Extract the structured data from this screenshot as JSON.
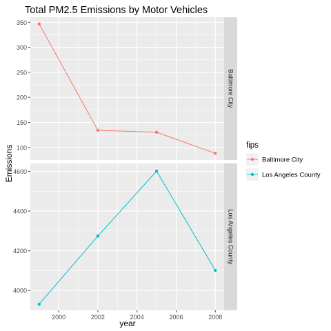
{
  "chart_data": {
    "type": "line",
    "title": "Total PM2.5 Emissions by Motor Vehicles",
    "xlabel": "year",
    "ylabel": "Emissions",
    "x": [
      1999,
      2002,
      2005,
      2008
    ],
    "xlim": [
      1998.55,
      2008.45
    ],
    "x_ticks": [
      2000,
      2002,
      2004,
      2006,
      2008
    ],
    "x_tick_labels": [
      "2000",
      "2002",
      "2004",
      "2006",
      "2008"
    ],
    "grid": true,
    "legend": {
      "title": "fips",
      "placement": "right"
    },
    "facets": [
      {
        "strip_label": "Baltimore City",
        "series": [
          {
            "name": "Baltimore City",
            "color": "#F8766D",
            "values": [
              346.8,
              134.3,
              130.4,
              88.3
            ]
          }
        ],
        "ylim": [
          75,
          360
        ],
        "y_ticks": [
          100,
          150,
          200,
          250,
          300,
          350
        ],
        "y_tick_labels": [
          "100",
          "150",
          "200",
          "250",
          "300",
          "350"
        ]
      },
      {
        "strip_label": "Los Angeles County",
        "series": [
          {
            "name": "Los Angeles County",
            "color": "#00BFC4",
            "values": [
              3931.1,
              4274.0,
              4601.4,
              4101.3
            ]
          }
        ],
        "ylim": [
          3900,
          4640
        ],
        "y_ticks": [
          4000,
          4200,
          4400,
          4600
        ],
        "y_tick_labels": [
          "4000",
          "4200",
          "4400",
          "4600"
        ]
      }
    ]
  }
}
